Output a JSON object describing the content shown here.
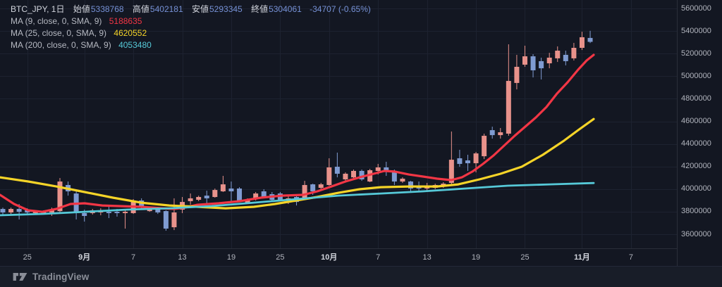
{
  "chart_data": {
    "type": "candlestick",
    "title": "BTC_JPY, 1日",
    "legend": {
      "title": "BTC_JPY, 1日",
      "open_label": "始値",
      "open": "5338768",
      "high_label": "高値",
      "high": "5402181",
      "low_label": "安値",
      "low": "5293345",
      "close_label": "終値",
      "close": "5304061",
      "change": "-34707 (-0.65%)"
    },
    "ma_studies": [
      {
        "label": "MA (9, close, 0, SMA, 9)",
        "value": "5188635",
        "color": "#f23645"
      },
      {
        "label": "MA (25, close, 0, SMA, 9)",
        "value": "4620552",
        "color": "#f5d428"
      },
      {
        "label": "MA (200, close, 0, SMA, 9)",
        "value": "4053480",
        "color": "#56c9d8"
      }
    ],
    "y_axis": {
      "min": 3600000,
      "max": 5600000,
      "tick_step": 200000,
      "tick_labels": [
        "5600000",
        "5400000",
        "5200000",
        "5000000",
        "4800000",
        "4600000",
        "4400000",
        "4200000",
        "4000000",
        "3800000",
        "3600000"
      ]
    },
    "x_axis_ticks": [
      {
        "label": "25",
        "index": 3
      },
      {
        "label": "9月",
        "index": 10,
        "major": true
      },
      {
        "label": "7",
        "index": 16
      },
      {
        "label": "13",
        "index": 22
      },
      {
        "label": "19",
        "index": 28
      },
      {
        "label": "25",
        "index": 34
      },
      {
        "label": "10月",
        "index": 40,
        "major": true
      },
      {
        "label": "7",
        "index": 46
      },
      {
        "label": "13",
        "index": 52
      },
      {
        "label": "19",
        "index": 58
      },
      {
        "label": "25",
        "index": 64
      },
      {
        "label": "11月",
        "index": 71,
        "major": true
      },
      {
        "label": "7",
        "index": 77
      }
    ],
    "candles_ohlc": [
      [
        3824000,
        3836000,
        3774000,
        3793000
      ],
      [
        3793000,
        3836000,
        3780000,
        3824000
      ],
      [
        3824000,
        3868000,
        3731000,
        3799000
      ],
      [
        3812000,
        3830000,
        3768000,
        3793000
      ],
      [
        3787000,
        3812000,
        3780000,
        3799000
      ],
      [
        3787000,
        3812000,
        3774000,
        3805000
      ],
      [
        3793000,
        3836000,
        3762000,
        3812000
      ],
      [
        3805000,
        4098000,
        3787000,
        4067000
      ],
      [
        4036000,
        4067000,
        3942000,
        3980000
      ],
      [
        3961000,
        3992000,
        3731000,
        3787000
      ],
      [
        3787000,
        3818000,
        3712000,
        3762000
      ],
      [
        3787000,
        3824000,
        3774000,
        3812000
      ],
      [
        3793000,
        3830000,
        3768000,
        3805000
      ],
      [
        3799000,
        3843000,
        3743000,
        3787000
      ],
      [
        3799000,
        3824000,
        3756000,
        3787000
      ],
      [
        3787000,
        3824000,
        3650000,
        3799000
      ],
      [
        3787000,
        3911000,
        3780000,
        3899000
      ],
      [
        3899000,
        3918000,
        3830000,
        3836000
      ],
      [
        3805000,
        3830000,
        3799000,
        3824000
      ],
      [
        3830000,
        3843000,
        3780000,
        3793000
      ],
      [
        3805000,
        3812000,
        3631000,
        3650000
      ],
      [
        3662000,
        3918000,
        3637000,
        3793000
      ],
      [
        3818000,
        3930000,
        3787000,
        3886000
      ],
      [
        3893000,
        3961000,
        3862000,
        3918000
      ],
      [
        3905000,
        3942000,
        3893000,
        3930000
      ],
      [
        3942000,
        3986000,
        3868000,
        3918000
      ],
      [
        3930000,
        4005000,
        3924000,
        3992000
      ],
      [
        3980000,
        4117000,
        3974000,
        4042000
      ],
      [
        4005000,
        4067000,
        3880000,
        3980000
      ],
      [
        4005000,
        4017000,
        3893000,
        3899000
      ],
      [
        3880000,
        3918000,
        3868000,
        3911000
      ],
      [
        3911000,
        3974000,
        3899000,
        3961000
      ],
      [
        3980000,
        3999000,
        3924000,
        3930000
      ],
      [
        3955000,
        3974000,
        3886000,
        3905000
      ],
      [
        3961000,
        3974000,
        3893000,
        3899000
      ],
      [
        3899000,
        3949000,
        3868000,
        3918000
      ],
      [
        3930000,
        3936000,
        3855000,
        3886000
      ],
      [
        3918000,
        4073000,
        3911000,
        4036000
      ],
      [
        4042000,
        4048000,
        3949000,
        3980000
      ],
      [
        4011000,
        4055000,
        3999000,
        4042000
      ],
      [
        4036000,
        4273000,
        4030000,
        4192000
      ],
      [
        4198000,
        4323000,
        4104000,
        4136000
      ],
      [
        4086000,
        4148000,
        4073000,
        4136000
      ],
      [
        4104000,
        4173000,
        4092000,
        4161000
      ],
      [
        4161000,
        4173000,
        4073000,
        4086000
      ],
      [
        4067000,
        4179000,
        4061000,
        4167000
      ],
      [
        4161000,
        4223000,
        4129000,
        4192000
      ],
      [
        4192000,
        4242000,
        4117000,
        4167000
      ],
      [
        4161000,
        4173000,
        4036000,
        4067000
      ],
      [
        4067000,
        4104000,
        4055000,
        4092000
      ],
      [
        4067000,
        4073000,
        3974000,
        4005000
      ],
      [
        4030000,
        4067000,
        3974000,
        4005000
      ],
      [
        4005000,
        4055000,
        3980000,
        4023000
      ],
      [
        4011000,
        4048000,
        3999000,
        4036000
      ],
      [
        4023000,
        4061000,
        4011000,
        4048000
      ],
      [
        4055000,
        4510000,
        4036000,
        4260000
      ],
      [
        4273000,
        4348000,
        4198000,
        4223000
      ],
      [
        4254000,
        4304000,
        4161000,
        4229000
      ],
      [
        4229000,
        4329000,
        4148000,
        4316000
      ],
      [
        4291000,
        4491000,
        4266000,
        4472000
      ],
      [
        4522000,
        4553000,
        4447000,
        4478000
      ],
      [
        4478000,
        4541000,
        4447000,
        4503000
      ],
      [
        4491000,
        5282000,
        4472000,
        4958000
      ],
      [
        4940000,
        5189000,
        4883000,
        5083000
      ],
      [
        5102000,
        5270000,
        5083000,
        5176000
      ],
      [
        5176000,
        5195000,
        4989000,
        5052000
      ],
      [
        5133000,
        5164000,
        4971000,
        5070000
      ],
      [
        5114000,
        5207000,
        5070000,
        5164000
      ],
      [
        5158000,
        5264000,
        5126000,
        5226000
      ],
      [
        5189000,
        5226000,
        5096000,
        5133000
      ],
      [
        5158000,
        5295000,
        5139000,
        5251000
      ],
      [
        5251000,
        5394000,
        5232000,
        5345000
      ],
      [
        5338768,
        5402181,
        5293345,
        5304061
      ]
    ],
    "ma_lines": [
      {
        "name": "MA9",
        "color": "#f23645",
        "width": 3.2,
        "points": [
          [
            0,
            3949000
          ],
          [
            20,
            3868000
          ],
          [
            40,
            3812000
          ],
          [
            60,
            3799000
          ],
          [
            80,
            3824000
          ],
          [
            100,
            3868000
          ],
          [
            120,
            3874000
          ],
          [
            145,
            3855000
          ],
          [
            170,
            3849000
          ],
          [
            200,
            3843000
          ],
          [
            230,
            3830000
          ],
          [
            247,
            3824000
          ],
          [
            262,
            3836000
          ],
          [
            280,
            3861000
          ],
          [
            310,
            3874000
          ],
          [
            340,
            3893000
          ],
          [
            370,
            3924000
          ],
          [
            400,
            3942000
          ],
          [
            430,
            3949000
          ],
          [
            450,
            3980000
          ],
          [
            470,
            4023000
          ],
          [
            490,
            4067000
          ],
          [
            510,
            4104000
          ],
          [
            530,
            4136000
          ],
          [
            545,
            4161000
          ],
          [
            560,
            4155000
          ],
          [
            580,
            4129000
          ],
          [
            600,
            4111000
          ],
          [
            620,
            4092000
          ],
          [
            640,
            4080000
          ],
          [
            655,
            4104000
          ],
          [
            670,
            4155000
          ],
          [
            685,
            4223000
          ],
          [
            700,
            4298000
          ],
          [
            715,
            4385000
          ],
          [
            730,
            4472000
          ],
          [
            745,
            4553000
          ],
          [
            760,
            4634000
          ],
          [
            775,
            4727000
          ],
          [
            790,
            4846000
          ],
          [
            805,
            4946000
          ],
          [
            820,
            5058000
          ],
          [
            832,
            5139000
          ],
          [
            842,
            5188635
          ]
        ]
      },
      {
        "name": "MA25",
        "color": "#f5d428",
        "width": 3.2,
        "points": [
          [
            0,
            4104000
          ],
          [
            40,
            4067000
          ],
          [
            80,
            4023000
          ],
          [
            120,
            3974000
          ],
          [
            160,
            3924000
          ],
          [
            200,
            3880000
          ],
          [
            240,
            3855000
          ],
          [
            280,
            3843000
          ],
          [
            320,
            3830000
          ],
          [
            360,
            3843000
          ],
          [
            390,
            3868000
          ],
          [
            420,
            3899000
          ],
          [
            450,
            3930000
          ],
          [
            480,
            3967000
          ],
          [
            510,
            3999000
          ],
          [
            540,
            4017000
          ],
          [
            580,
            4023000
          ],
          [
            620,
            4023000
          ],
          [
            650,
            4042000
          ],
          [
            680,
            4086000
          ],
          [
            710,
            4136000
          ],
          [
            740,
            4198000
          ],
          [
            770,
            4304000
          ],
          [
            800,
            4429000
          ],
          [
            820,
            4522000
          ],
          [
            842,
            4620552
          ]
        ]
      },
      {
        "name": "MA200",
        "color": "#56c9d8",
        "width": 2.8,
        "points": [
          [
            0,
            3768000
          ],
          [
            60,
            3780000
          ],
          [
            120,
            3799000
          ],
          [
            180,
            3818000
          ],
          [
            240,
            3830000
          ],
          [
            300,
            3849000
          ],
          [
            360,
            3880000
          ],
          [
            420,
            3911000
          ],
          [
            480,
            3942000
          ],
          [
            540,
            3961000
          ],
          [
            600,
            3980000
          ],
          [
            660,
            4005000
          ],
          [
            720,
            4030000
          ],
          [
            780,
            4042000
          ],
          [
            842,
            4053480
          ]
        ]
      }
    ],
    "colors": {
      "up": "#e8928b",
      "down": "#7f9bd1",
      "legend_value": "#7691d6",
      "background": "#131722",
      "grid": "#1d2230",
      "axis_border": "#2a2e39",
      "axis_text": "#b2b5be",
      "title_text": "#d1d4dc"
    }
  },
  "attribution": {
    "brand": "TradingView"
  }
}
